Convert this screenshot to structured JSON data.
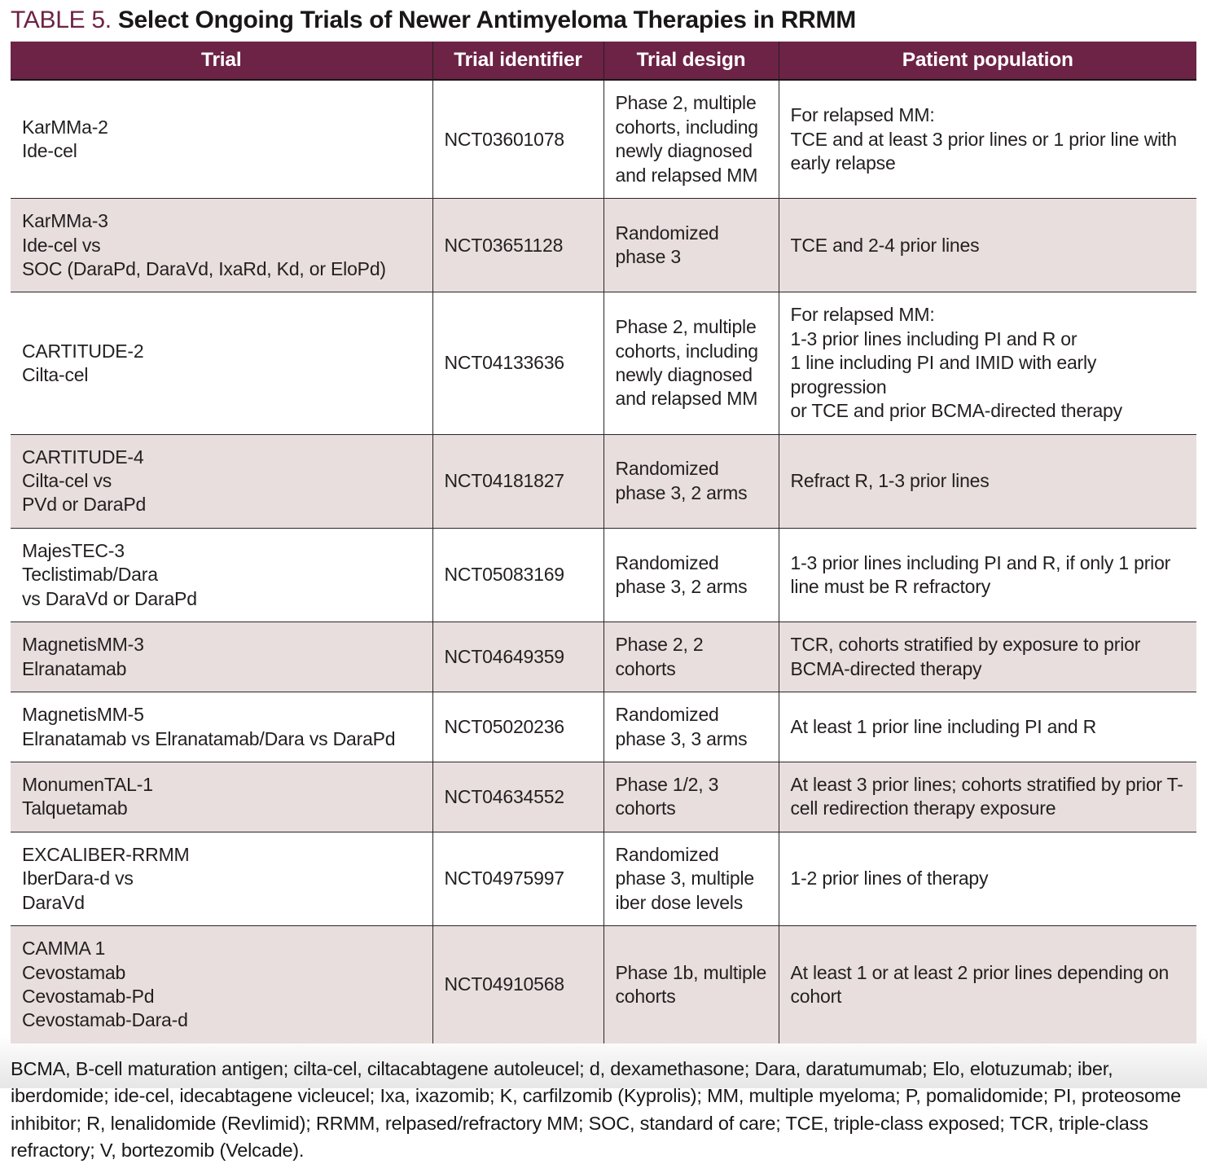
{
  "page": {
    "title_prefix": "TABLE 5.",
    "title_text": "Select Ongoing Trials of Newer Antimyeloma Therapies in RRMM"
  },
  "colors": {
    "header_background": "#6d2346",
    "title_accent": "#6d2346",
    "shaded_row_background": "#e7dedd",
    "body_text": "#231f20",
    "header_text": "#ffffff",
    "rule_lines": "#2a2627"
  },
  "table": {
    "columns": [
      "Trial",
      "Trial identifier",
      "Trial design",
      "Patient population"
    ],
    "rows": [
      {
        "trial": "KarMMa-2\nIde-cel",
        "identifier": "NCT03601078",
        "design": "Phase 2, multiple cohorts, including newly diagnosed and relapsed MM",
        "population": "For relapsed MM:\nTCE and at least 3 prior lines or 1 prior line with early relapse"
      },
      {
        "trial": "KarMMa-3\nIde-cel vs\nSOC (DaraPd, DaraVd, IxaRd, Kd, or EloPd)",
        "identifier": "NCT03651128",
        "design": "Randomized phase 3",
        "population": "TCE and 2-4 prior lines"
      },
      {
        "trial": "CARTITUDE-2\nCilta-cel",
        "identifier": "NCT04133636",
        "design": "Phase 2, multiple cohorts, including newly diagnosed and relapsed MM",
        "population": "For relapsed MM:\n1-3 prior lines including PI and R or\n1 line including PI and IMID with early progression\nor TCE and prior BCMA-directed therapy"
      },
      {
        "trial": "CARTITUDE-4\nCilta-cel vs\nPVd or DaraPd",
        "identifier": "NCT04181827",
        "design": "Randomized phase 3, 2 arms",
        "population": "Refract R, 1-3 prior lines"
      },
      {
        "trial": "MajesTEC-3\nTeclistimab/Dara\nvs DaraVd or DaraPd",
        "identifier": "NCT05083169",
        "design": "Randomized phase 3, 2 arms",
        "population": "1-3 prior lines including PI and R, if only 1 prior line must be R refractory"
      },
      {
        "trial": "MagnetisMM-3\nElranatamab",
        "identifier": "NCT04649359",
        "design": "Phase 2, 2 cohorts",
        "population": "TCR, cohorts stratified by exposure to prior BCMA-directed therapy"
      },
      {
        "trial": "MagnetisMM-5\nElranatamab vs Elranatamab/Dara vs DaraPd",
        "identifier": "NCT05020236",
        "design": "Randomized phase 3, 3 arms",
        "population": "At least 1 prior line including PI and R"
      },
      {
        "trial": "MonumenTAL-1\nTalquetamab",
        "identifier": "NCT04634552",
        "design": "Phase 1/2, 3 cohorts",
        "population": "At least 3 prior lines; cohorts stratified by prior T-cell redirection therapy exposure"
      },
      {
        "trial": "EXCALIBER-RRMM\nIberDara-d vs\nDaraVd",
        "identifier": "NCT04975997",
        "design": "Randomized phase 3, multiple iber dose levels",
        "population": "1-2 prior lines of therapy"
      },
      {
        "trial": "CAMMA 1\nCevostamab\nCevostamab-Pd\nCevostamab-Dara-d",
        "identifier": "NCT04910568",
        "design": "Phase 1b, multiple cohorts",
        "population": "At least 1 or at least 2 prior lines depending on cohort"
      }
    ]
  },
  "footnote": "BCMA, B-cell maturation antigen; cilta-cel, ciltacabtagene autoleucel; d, dexamethasone; Dara, daratumumab; Elo, elotuzumab; iber, iberdomide; ide-cel, idecabtagene vicleucel; Ixa, ixazomib; K, carfilzomib (Kyprolis); MM, multiple myeloma; P, pomalidomide; PI, proteosome inhibitor; R, lenalidomide (Revlimid); RRMM, relpased/refractory MM; SOC, standard of care; TCE, triple-class exposed; TCR, triple-class refractory; V, bortezomib (Velcade)."
}
